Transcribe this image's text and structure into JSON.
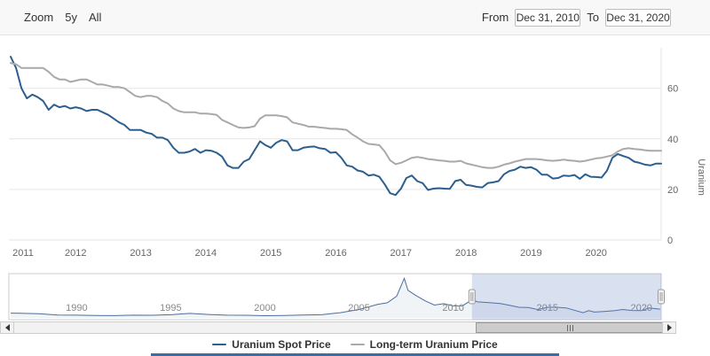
{
  "range_selector": {
    "zoom_label": "Zoom",
    "buttons": [
      {
        "label": "5y"
      },
      {
        "label": "All"
      }
    ],
    "from_label": "From",
    "from_value": "Dec 31, 2010",
    "to_label": "To",
    "to_value": "Dec 31, 2020"
  },
  "colors": {
    "grid": "#e6e6e6",
    "axis_text": "#666666",
    "navigator_line": "#4a6e9e",
    "navigator_fill": "rgba(74,110,158,0.08)",
    "selection_mask": "rgba(102,133,194,0.25)",
    "bottom_bar": "#3d6ca3"
  },
  "chart_data": {
    "type": "line",
    "title": "",
    "x_axis": {
      "range": [
        2011,
        2021
      ],
      "ticks": [
        2011,
        2012,
        2013,
        2014,
        2015,
        2016,
        2017,
        2018,
        2019,
        2020
      ]
    },
    "y_axis": {
      "title": "Uranium",
      "range": [
        0,
        76
      ],
      "ticks": [
        0,
        20,
        40,
        60
      ]
    },
    "grid": true,
    "legend_position": "bottom",
    "series": [
      {
        "name": "Uranium Spot Price",
        "color": "#2c5f8e",
        "start_year": 2011,
        "interval_months": 1,
        "values": [
          72.5,
          68,
          60,
          56,
          57.5,
          56.5,
          55,
          51.5,
          53.5,
          52.5,
          53,
          52,
          52.5,
          52,
          51,
          51.5,
          51.5,
          50.5,
          49.5,
          48,
          46.5,
          45.5,
          43.5,
          43.5,
          43.5,
          42.5,
          42,
          40.5,
          40.5,
          39.5,
          36.5,
          34.5,
          34.5,
          35,
          36,
          34.5,
          35.5,
          35.3,
          34.5,
          33,
          29.5,
          28.5,
          28.5,
          31,
          32,
          35.5,
          39,
          37.5,
          36.5,
          38.5,
          39.5,
          39,
          35.5,
          35.5,
          36.5,
          36.8,
          37,
          36.3,
          36,
          34.5,
          34.7,
          32.5,
          29.5,
          29,
          27.5,
          27,
          25.5,
          25.8,
          25,
          22,
          18.5,
          17.8,
          20.3,
          24.5,
          25.5,
          23.3,
          22.5,
          19.8,
          20.3,
          20.5,
          20.3,
          20.2,
          23.3,
          23.8,
          21.8,
          21.5,
          21,
          20.8,
          22.5,
          22.8,
          23.3,
          26,
          27.3,
          27.8,
          29,
          28.5,
          28.8,
          27.8,
          25.8,
          25.8,
          24.3,
          24.5,
          25.5,
          25.3,
          25.7,
          24.2,
          26,
          25,
          24.9,
          24.7,
          27.4,
          32.5,
          34,
          33.2,
          32.5,
          31,
          30.5,
          29.8,
          29.5,
          30.2,
          30.2
        ]
      },
      {
        "name": "Long-term Uranium Price",
        "color": "#a9a9a9",
        "start_year": 2011,
        "interval_months": 1,
        "values": [
          70,
          69.5,
          68,
          68,
          68,
          68,
          68,
          66.5,
          64.5,
          63.5,
          63.5,
          62.5,
          63,
          63.5,
          63.5,
          62.5,
          61.5,
          61.5,
          61,
          60.5,
          60.5,
          60,
          58.5,
          57,
          56.5,
          57,
          57,
          56.5,
          55,
          54,
          52,
          51,
          50.5,
          50.5,
          50.5,
          50,
          50,
          49.8,
          49.5,
          47.5,
          46.5,
          45.5,
          44.5,
          44.3,
          44.5,
          45,
          48,
          49.3,
          49.3,
          49.3,
          49,
          48.5,
          46.5,
          46,
          45.5,
          44.8,
          44.8,
          44.5,
          44.3,
          44,
          44,
          43.8,
          43.5,
          41.8,
          40.5,
          39,
          38,
          37.8,
          37.5,
          35,
          31.5,
          30,
          30.5,
          31.5,
          32.5,
          32.8,
          32.5,
          32,
          31.8,
          31.5,
          31.3,
          31,
          31,
          31.3,
          30.3,
          29.8,
          29.3,
          28.8,
          28.5,
          28.5,
          29,
          29.8,
          30.3,
          31,
          31.5,
          32,
          32,
          32,
          31.8,
          31.5,
          31.3,
          31.5,
          31.8,
          31.5,
          31.3,
          31,
          31.3,
          31.8,
          32.3,
          32.5,
          33,
          33.5,
          35,
          36,
          36.3,
          36,
          35.8,
          35.5,
          35.3,
          35.3,
          35.3
        ]
      }
    ],
    "navigator": {
      "x_labels": [
        1990,
        1995,
        2000,
        2005,
        2010,
        2015,
        2020
      ],
      "range": [
        1986.4,
        2021.05
      ],
      "y_range": [
        0,
        140
      ],
      "selected_range": [
        2011,
        2021.05
      ],
      "points": [
        [
          1986.5,
          16.5
        ],
        [
          1987,
          16
        ],
        [
          1988,
          14.5
        ],
        [
          1989,
          10
        ],
        [
          1990,
          9.5
        ],
        [
          1991,
          8.5
        ],
        [
          1992,
          8
        ],
        [
          1993,
          9.5
        ],
        [
          1994,
          9
        ],
        [
          1995,
          11
        ],
        [
          1996,
          15.5
        ],
        [
          1997,
          12
        ],
        [
          1998,
          9.5
        ],
        [
          1999,
          9
        ],
        [
          2000,
          7.5
        ],
        [
          2001,
          8.5
        ],
        [
          2002,
          9.8
        ],
        [
          2003,
          11
        ],
        [
          2004,
          18
        ],
        [
          2005,
          29
        ],
        [
          2006,
          47
        ],
        [
          2006.5,
          52
        ],
        [
          2007,
          75
        ],
        [
          2007.4,
          136
        ],
        [
          2007.6,
          95
        ],
        [
          2008,
          78
        ],
        [
          2008.5,
          59
        ],
        [
          2009,
          44
        ],
        [
          2009.5,
          49
        ],
        [
          2010,
          41.5
        ],
        [
          2010.5,
          42
        ],
        [
          2011,
          62
        ],
        [
          2011.3,
          55
        ],
        [
          2012,
          52
        ],
        [
          2012.5,
          49.5
        ],
        [
          2013,
          43.5
        ],
        [
          2013.5,
          36.5
        ],
        [
          2014,
          35.5
        ],
        [
          2014.5,
          28.5
        ],
        [
          2015,
          36.5
        ],
        [
          2015.5,
          36.5
        ],
        [
          2016,
          34.5
        ],
        [
          2016.9,
          18
        ],
        [
          2017.2,
          25
        ],
        [
          2017.5,
          20
        ],
        [
          2018,
          21.8
        ],
        [
          2018.6,
          25
        ],
        [
          2019,
          28.8
        ],
        [
          2019.5,
          25.5
        ],
        [
          2020,
          24.9
        ],
        [
          2020.4,
          34
        ],
        [
          2021,
          30.2
        ]
      ]
    }
  },
  "legend": {
    "items": [
      {
        "label": "Uranium Spot Price",
        "color": "#2c5f8e"
      },
      {
        "label": "Long-term Uranium Price",
        "color": "#a9a9a9"
      }
    ]
  }
}
